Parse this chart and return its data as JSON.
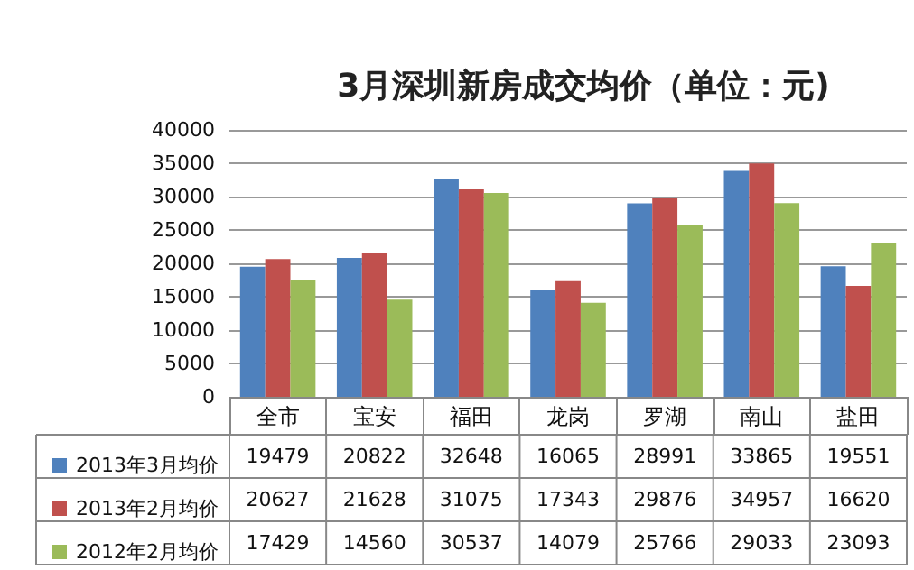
{
  "chart_data": {
    "type": "bar",
    "title": "3月深圳新房成交均价（单位：元)",
    "categories": [
      "全市",
      "宝安",
      "福田",
      "龙岗",
      "罗湖",
      "南山",
      "盐田"
    ],
    "series": [
      {
        "name": "2013年3月均价",
        "color": "#4f81bd",
        "values": [
          19479,
          20822,
          32648,
          16065,
          28991,
          33865,
          19551
        ]
      },
      {
        "name": "2013年2月均价",
        "color": "#c0504d",
        "values": [
          20627,
          21628,
          31075,
          17343,
          29876,
          34957,
          16620
        ]
      },
      {
        "name": "2012年2月均价",
        "color": "#9bbb59",
        "values": [
          17429,
          14560,
          30537,
          14079,
          25766,
          29033,
          23093
        ]
      }
    ],
    "ylim": [
      0,
      40000
    ],
    "yticks": [
      0,
      5000,
      10000,
      15000,
      20000,
      25000,
      30000,
      35000,
      40000
    ],
    "grid": "y",
    "legend": "bottom left",
    "data_labels": true
  }
}
